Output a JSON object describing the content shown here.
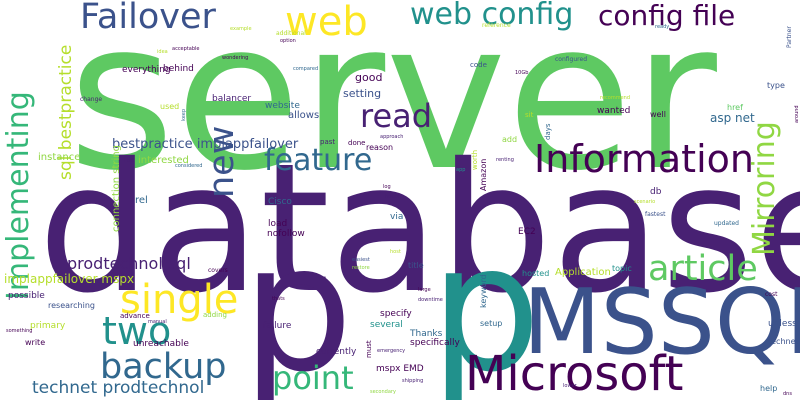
{
  "words": [
    {
      "text": "server",
      "color": "#5ec962"
    },
    {
      "text": "database",
      "color": "#482173"
    },
    {
      "text": "p",
      "color": "#482173"
    },
    {
      "text": "p",
      "color": "#21918c"
    },
    {
      "text": "MSSQL",
      "color": "#3b528b"
    },
    {
      "text": "Microsoft",
      "color": "#440154"
    },
    {
      "text": "Information",
      "color": "#440154"
    },
    {
      "text": "Failover",
      "color": "#3b528b"
    },
    {
      "text": "web config",
      "color": "#21918c"
    },
    {
      "text": "config file",
      "color": "#440154"
    },
    {
      "text": "web",
      "color": "#fde725"
    },
    {
      "text": "read",
      "color": "#482173"
    },
    {
      "text": "feature",
      "color": "#31688e"
    },
    {
      "text": "article",
      "color": "#5ec962"
    },
    {
      "text": "single",
      "color": "#fde725"
    },
    {
      "text": "two",
      "color": "#21918c"
    },
    {
      "text": "backup",
      "color": "#31688e"
    },
    {
      "text": "point",
      "color": "#35b779"
    },
    {
      "text": "new",
      "color": "#3b528b"
    },
    {
      "text": "Implementing",
      "color": "#35b779"
    },
    {
      "text": "Mirroring",
      "color": "#90d743"
    },
    {
      "text": "sql bestpractice",
      "color": "#b5de2b"
    },
    {
      "text": "technet prodtechnol",
      "color": "#31688e"
    },
    {
      "text": "prodtechnol sql",
      "color": "#482173"
    },
    {
      "text": "bestpractice implappfailover",
      "color": "#3b528b"
    },
    {
      "text": "implappfailover mspx",
      "color": "#b5de2b"
    },
    {
      "text": "connection string",
      "color": "#90d743"
    },
    {
      "text": "asp net",
      "color": "#31688e"
    },
    {
      "text": "Application",
      "color": "#b5de2b"
    },
    {
      "text": "good",
      "color": "#440154"
    },
    {
      "text": "setting",
      "color": "#3b528b"
    },
    {
      "text": "allows",
      "color": "#3b528b"
    },
    {
      "text": "website",
      "color": "#31688e"
    },
    {
      "text": "balancer",
      "color": "#482173"
    },
    {
      "text": "everything",
      "color": "#440154"
    },
    {
      "text": "behind",
      "color": "#440154"
    },
    {
      "text": "instance",
      "color": "#90d743"
    },
    {
      "text": "interested",
      "color": "#90d743"
    },
    {
      "text": "rel",
      "color": "#31688e"
    },
    {
      "text": "load",
      "color": "#440154"
    },
    {
      "text": "nofollow",
      "color": "#440154"
    },
    {
      "text": "Cisco",
      "color": "#31688e"
    },
    {
      "text": "via",
      "color": "#31688e"
    },
    {
      "text": "EC2",
      "color": "#440154"
    },
    {
      "text": "Amazon",
      "color": "#440154"
    },
    {
      "text": "db",
      "color": "#482173"
    },
    {
      "text": "specify",
      "color": "#440154"
    },
    {
      "text": "several",
      "color": "#21918c"
    },
    {
      "text": "possible",
      "color": "#482173"
    },
    {
      "text": "primary",
      "color": "#b5de2b"
    },
    {
      "text": "researching",
      "color": "#3b528b"
    },
    {
      "text": "advance",
      "color": "#440154"
    },
    {
      "text": "unreachable",
      "color": "#440154"
    },
    {
      "text": "failure",
      "color": "#482173"
    },
    {
      "text": "currently",
      "color": "#482173"
    },
    {
      "text": "mspx EMD",
      "color": "#440154"
    },
    {
      "text": "specifically",
      "color": "#440154"
    },
    {
      "text": "Thanks",
      "color": "#31688e"
    },
    {
      "text": "setup",
      "color": "#31688e"
    },
    {
      "text": "keyword",
      "color": "#31688e"
    },
    {
      "text": "hosted",
      "color": "#21918c"
    },
    {
      "text": "topic",
      "color": "#21918c"
    },
    {
      "text": "unless",
      "color": "#3b528b"
    },
    {
      "text": "technet",
      "color": "#3b528b"
    },
    {
      "text": "help",
      "color": "#31688e"
    },
    {
      "text": "wanted",
      "color": "#440154"
    },
    {
      "text": "well",
      "color": "#440154"
    },
    {
      "text": "href",
      "color": "#5ec962"
    },
    {
      "text": "type",
      "color": "#3b528b"
    },
    {
      "text": "add",
      "color": "#90d743"
    },
    {
      "text": "days",
      "color": "#31688e"
    },
    {
      "text": "sit",
      "color": "#b5de2b"
    },
    {
      "text": "code",
      "color": "#3b528b"
    },
    {
      "text": "reason",
      "color": "#440154"
    },
    {
      "text": "done",
      "color": "#440154"
    },
    {
      "text": "past",
      "color": "#482173"
    },
    {
      "text": "used",
      "color": "#b5de2b"
    },
    {
      "text": "change",
      "color": "#482173"
    },
    {
      "text": "write",
      "color": "#440154"
    },
    {
      "text": "adding",
      "color": "#90d743"
    },
    {
      "text": "title",
      "color": "#3b528b"
    },
    {
      "text": "must",
      "color": "#440154"
    },
    {
      "text": "worth",
      "color": "#b5de2b"
    },
    {
      "text": "Partner",
      "color": "#3b528b"
    },
    {
      "text": "around",
      "color": "#440154"
    },
    {
      "text": "cost",
      "color": "#440154"
    },
    {
      "text": "updated",
      "color": "#31688e"
    },
    {
      "text": "fastest",
      "color": "#3b528b"
    },
    {
      "text": "scenario",
      "color": "#b5de2b"
    },
    {
      "text": "dns",
      "color": "#440154"
    },
    {
      "text": "lower",
      "color": "#482173"
    },
    {
      "text": "shipping",
      "color": "#482173"
    },
    {
      "text": "secondary",
      "color": "#90d743"
    },
    {
      "text": "emergency",
      "color": "#482173"
    },
    {
      "text": "downtime",
      "color": "#482173"
    },
    {
      "text": "large",
      "color": "#440154"
    },
    {
      "text": "easiest",
      "color": "#3b528b"
    },
    {
      "text": "restore",
      "color": "#90d743"
    },
    {
      "text": "host",
      "color": "#b5de2b"
    },
    {
      "text": "hours",
      "color": "#482173"
    },
    {
      "text": "log",
      "color": "#440154"
    },
    {
      "text": "approach",
      "color": "#482173"
    },
    {
      "text": "renting",
      "color": "#482173"
    },
    {
      "text": "app",
      "color": "#21918c"
    },
    {
      "text": "wondering",
      "color": "#440154"
    },
    {
      "text": "acceptable",
      "color": "#440154"
    },
    {
      "text": "additional",
      "color": "#b5de2b"
    },
    {
      "text": "option",
      "color": "#440154"
    },
    {
      "text": "compared",
      "color": "#31688e"
    },
    {
      "text": "configured",
      "color": "#3b528b"
    },
    {
      "text": "recommend",
      "color": "#b5de2b"
    },
    {
      "text": "10Gb",
      "color": "#440154"
    },
    {
      "text": "ready",
      "color": "#31688e"
    },
    {
      "text": "keep",
      "color": "#31688e"
    },
    {
      "text": "considered",
      "color": "#31688e"
    },
    {
      "text": "Edit",
      "color": "#482173"
    },
    {
      "text": "idea",
      "color": "#b5de2b"
    },
    {
      "text": "covers",
      "color": "#440154"
    },
    {
      "text": "manual",
      "color": "#482173"
    },
    {
      "text": "thats",
      "color": "#440154"
    },
    {
      "text": "something",
      "color": "#440154"
    },
    {
      "text": "reference",
      "color": "#b5de2b"
    },
    {
      "text": "example",
      "color": "#b5de2b"
    }
  ]
}
